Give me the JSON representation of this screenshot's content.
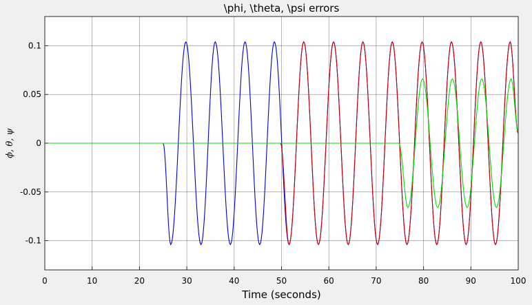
{
  "chart_data": {
    "type": "line",
    "title": "\\phi, \\theta, \\psi errors",
    "xlabel": "Time (seconds)",
    "ylabel": "ϕ, θ, ψ",
    "xlim": [
      0,
      100
    ],
    "ylim": [
      -0.13,
      0.13
    ],
    "xticks": [
      0,
      10,
      20,
      30,
      40,
      50,
      60,
      70,
      80,
      90,
      100
    ],
    "xtick_labels": [
      "0",
      "10",
      "20",
      "30",
      "40",
      "50",
      "60",
      "70",
      "80",
      "90",
      "100"
    ],
    "yticks": [
      0.1,
      0.05,
      0,
      -0.05,
      -0.1
    ],
    "ytick_labels": [
      "0.1",
      "0.05",
      "0",
      "-0.05",
      "-0.1"
    ],
    "grid": true,
    "series": [
      {
        "color": "#0000cc",
        "description": "sinusoid starting near t=25",
        "x": [
          25,
          26.6,
          29.8,
          33.0,
          36.0,
          39.2,
          42.3,
          45.4,
          48.5,
          51.6,
          54.7,
          57.8,
          61.0,
          64.1,
          67.2,
          70.3,
          73.4,
          76.5,
          79.7,
          82.8,
          85.9,
          89.0,
          92.1,
          95.2,
          98.3,
          100
        ],
        "y": [
          0,
          -0.104,
          0.104,
          -0.104,
          0.104,
          -0.104,
          0.104,
          -0.104,
          0.104,
          -0.104,
          0.104,
          -0.104,
          0.104,
          -0.104,
          0.104,
          -0.104,
          0.104,
          -0.104,
          0.104,
          -0.104,
          0.104,
          -0.104,
          0.104,
          -0.104,
          0.104,
          0.01
        ]
      },
      {
        "color": "#cc0000",
        "description": "sinusoid starting near t=50",
        "x": [
          0,
          49.8,
          51.6,
          54.7,
          57.8,
          61.0,
          64.1,
          67.2,
          70.3,
          73.4,
          76.5,
          79.7,
          82.8,
          85.9,
          89.0,
          92.1,
          95.2,
          98.3,
          100
        ],
        "y": [
          0,
          0,
          -0.104,
          0.104,
          -0.104,
          0.104,
          -0.104,
          0.104,
          -0.104,
          0.104,
          -0.104,
          0.104,
          -0.104,
          0.104,
          -0.104,
          0.104,
          -0.104,
          0.104,
          0.01
        ]
      },
      {
        "color": "#00dd00",
        "description": "sinusoid starting near t=75",
        "x": [
          0,
          74.8,
          76.7,
          79.8,
          83.0,
          86.1,
          89.2,
          92.3,
          95.4,
          98.5,
          100
        ],
        "y": [
          0,
          0,
          -0.066,
          0.066,
          -0.066,
          0.066,
          -0.066,
          0.066,
          -0.066,
          0.066,
          0.012
        ]
      }
    ]
  }
}
